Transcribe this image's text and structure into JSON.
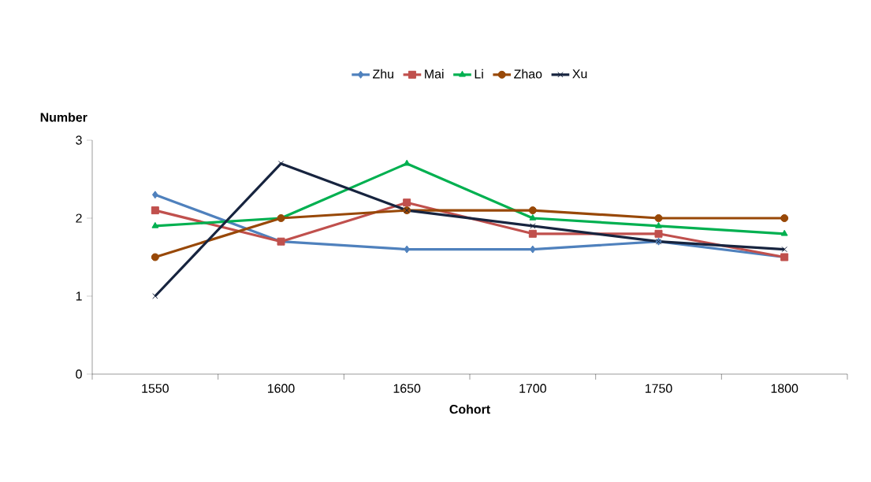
{
  "chart_data": {
    "type": "line",
    "xlabel": "Cohort",
    "ylabel": "Number",
    "categories": [
      "1550",
      "1600",
      "1650",
      "1700",
      "1750",
      "1800"
    ],
    "ylim": [
      0,
      3
    ],
    "yticks": [
      0,
      1,
      2,
      3
    ],
    "grid": false,
    "legend": "top",
    "series": [
      {
        "name": "Zhu",
        "color": "#4f81bd",
        "marker": "diamond",
        "values": [
          2.3,
          1.7,
          1.6,
          1.6,
          1.7,
          1.5
        ]
      },
      {
        "name": "Mai",
        "color": "#c0504d",
        "marker": "square",
        "values": [
          2.1,
          1.7,
          2.2,
          1.8,
          1.8,
          1.5
        ]
      },
      {
        "name": "Li",
        "color": "#00b050",
        "marker": "triangle",
        "values": [
          1.9,
          2.0,
          2.7,
          2.0,
          1.9,
          1.8
        ]
      },
      {
        "name": "Zhao",
        "color": "#984807",
        "marker": "circle",
        "values": [
          1.5,
          2.0,
          2.1,
          2.1,
          2.0,
          2.0
        ]
      },
      {
        "name": "Xu",
        "color": "#17243f",
        "marker": "cross",
        "values": [
          1.0,
          2.7,
          2.1,
          1.9,
          1.7,
          1.6
        ]
      }
    ]
  }
}
